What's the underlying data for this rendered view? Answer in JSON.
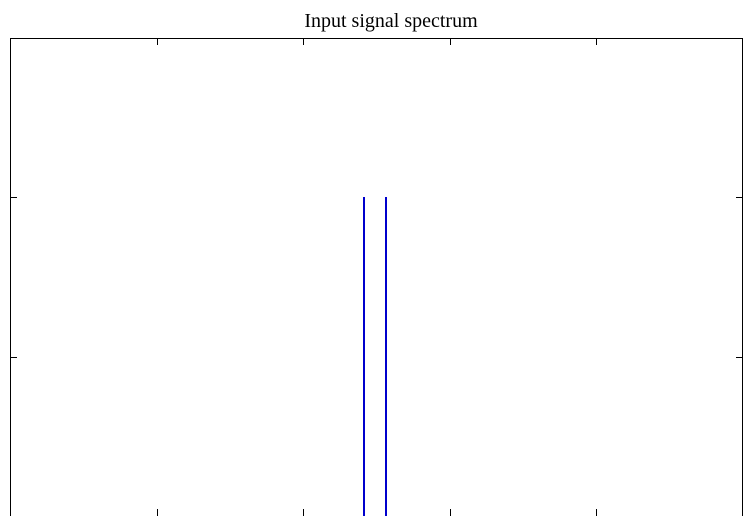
{
  "chart_data": {
    "type": "line",
    "title": "Input signal spectrum",
    "xlabel": "",
    "ylabel": "",
    "xlim": [
      0,
      1
    ],
    "ylim": [
      0,
      1.5
    ],
    "xticks": [
      0,
      0.2,
      0.4,
      0.6,
      0.8,
      1.0
    ],
    "yticks": [
      0,
      0.5,
      1.0,
      1.5
    ],
    "tick_labels_shown": false,
    "grid": false,
    "series": [
      {
        "color": "#0000cc",
        "style": "stem",
        "x": [
          0.4826,
          0.5128
        ],
        "y": [
          1,
          1
        ]
      }
    ]
  }
}
